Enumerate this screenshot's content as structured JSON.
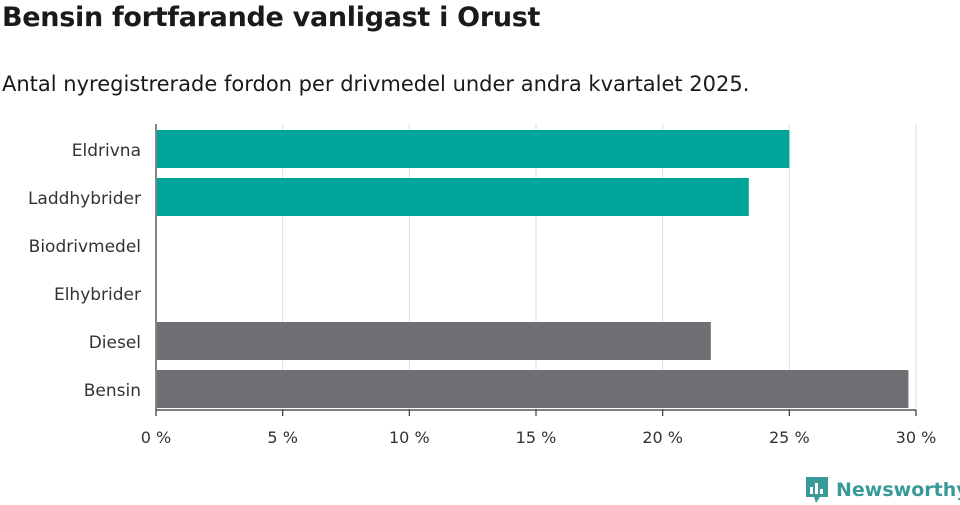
{
  "title": "Bensin fortfarande vanligast i Orust",
  "subtitle": "Antal nyregistrerade fordon per drivmedel under andra kvartalet 2025.",
  "brand": "Newsworthy",
  "colors": {
    "teal": "#00a59a",
    "gray": "#6f6e73",
    "brand": "#3a9a9a"
  },
  "chart_data": {
    "type": "bar",
    "orientation": "horizontal",
    "categories": [
      "Eldrivna",
      "Laddhybrider",
      "Biodrivmedel",
      "Elhybrider",
      "Diesel",
      "Bensin"
    ],
    "values": [
      25.0,
      23.4,
      0,
      0,
      21.9,
      29.7
    ],
    "bar_colors": [
      "#00a59a",
      "#00a59a",
      "#00a59a",
      "#00a59a",
      "#6f6e73",
      "#6f6e73"
    ],
    "xlim": [
      0,
      30
    ],
    "ticks": [
      0,
      5,
      10,
      15,
      20,
      25,
      30
    ],
    "tick_labels": [
      "0 %",
      "5 %",
      "10 %",
      "15 %",
      "20 %",
      "25 %",
      "30 %"
    ],
    "grid": true,
    "legend": false
  }
}
